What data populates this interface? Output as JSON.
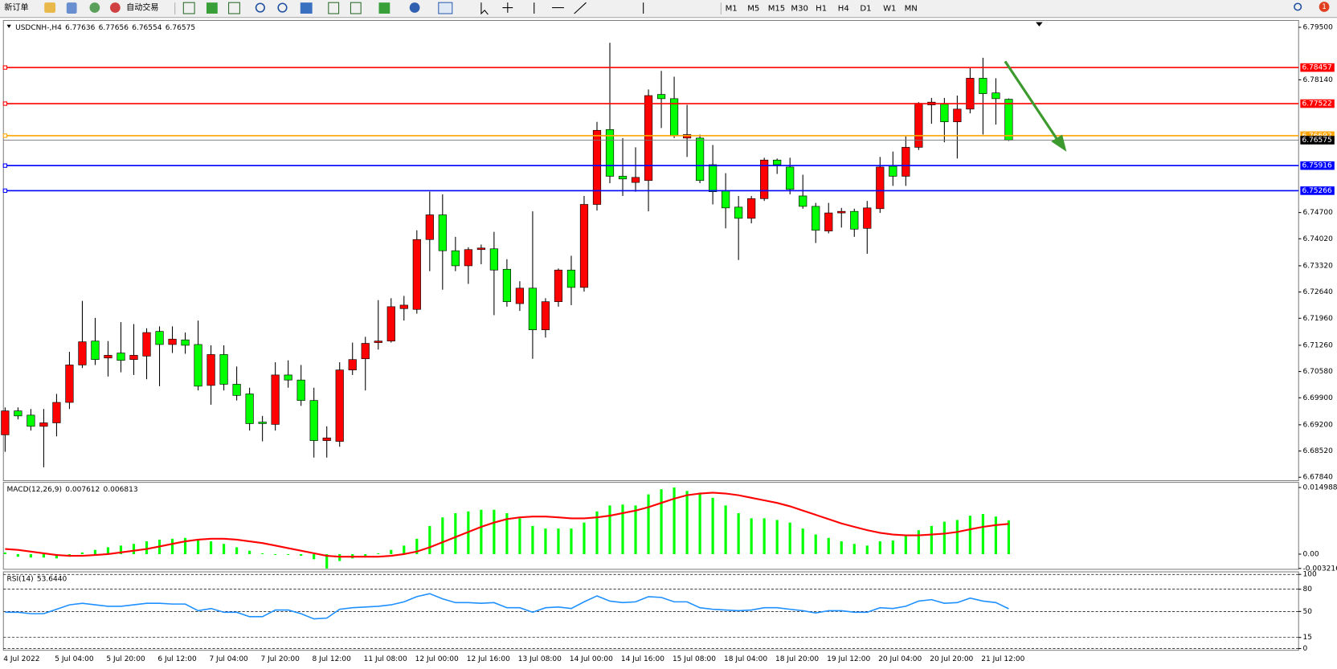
{
  "toolbar": {
    "new_order": "新订单",
    "auto_trading": "自动交易",
    "timeframes": [
      "M1",
      "M5",
      "M15",
      "M30",
      "H1",
      "H4",
      "D1",
      "W1",
      "MN"
    ],
    "badge": 1
  },
  "chart_data": [
    {
      "type": "candlestick",
      "symbol": "USDCNH-,H4",
      "up_color": "#ff0000",
      "down_color": "#00ff00",
      "categories": [
        "4 Jul 2022",
        null,
        null,
        null,
        "5 Jul 04:00",
        null,
        null,
        null,
        "5 Jul 20:00",
        null,
        null,
        null,
        "6 Jul 12:00",
        null,
        null,
        null,
        "7 Jul 04:00",
        null,
        null,
        null,
        "7 Jul 20:00",
        null,
        null,
        null,
        "8 Jul 12:00",
        null,
        null,
        null,
        "11 Jul 08:00",
        null,
        null,
        null,
        "12 Jul 00:00",
        null,
        null,
        null,
        "12 Jul 16:00",
        null,
        null,
        null,
        "13 Jul 08:00",
        null,
        null,
        null,
        "14 Jul 00:00",
        null,
        null,
        null,
        "14 Jul 16:00",
        null,
        null,
        null,
        "15 Jul 08:00",
        null,
        null,
        null,
        "18 Jul 04:00",
        null,
        null,
        null,
        "18 Jul 20:00",
        null,
        null,
        null,
        "19 Jul 12:00",
        null,
        null,
        null,
        "20 Jul 04:00",
        null,
        null,
        null,
        "20 Jul 20:00",
        null,
        null,
        null,
        "21 Jul 12:00",
        null,
        null
      ],
      "open": [
        6.6894,
        6.6956,
        6.6945,
        6.6916,
        6.6925,
        6.6978,
        6.7075,
        6.7137,
        6.7093,
        6.7106,
        6.7089,
        6.7098,
        6.7162,
        6.7128,
        6.714,
        6.7128,
        6.7022,
        6.7102,
        6.7025,
        6.7,
        6.6927,
        6.6921,
        6.7049,
        6.7036,
        6.6983,
        6.6879,
        6.6877,
        6.7062,
        6.7091,
        6.7133,
        6.7137,
        6.7221,
        6.7219,
        6.74,
        6.7464,
        6.7371,
        6.7332,
        6.7374,
        6.7376,
        6.7323,
        6.7234,
        6.7274,
        6.7166,
        6.7239,
        6.7321,
        6.7276,
        6.7491,
        6.7685,
        6.7564,
        6.7548,
        6.7553,
        6.7776,
        6.7765,
        6.7663,
        6.7663,
        6.7594,
        6.7526,
        6.7484,
        6.7455,
        6.7506,
        6.7606,
        6.7588,
        6.7513,
        6.7486,
        6.7422,
        6.7469,
        6.7473,
        6.7429,
        6.748,
        6.759,
        6.7564,
        6.7639,
        6.7749,
        6.7751,
        6.7705,
        6.7738,
        6.7818,
        6.778,
        6.77636
      ],
      "high": [
        6.6965,
        6.6965,
        6.6961,
        6.6961,
        6.7,
        6.7109,
        6.7241,
        6.7197,
        6.7137,
        6.7186,
        6.7181,
        6.717,
        6.7175,
        6.7175,
        6.7159,
        6.719,
        6.7126,
        6.7126,
        6.7071,
        6.7016,
        6.6943,
        6.7082,
        6.7087,
        6.7075,
        6.7016,
        6.6916,
        6.7082,
        6.7133,
        6.7148,
        6.7243,
        6.7248,
        6.7254,
        6.7424,
        6.7524,
        6.7517,
        6.7407,
        6.738,
        6.7387,
        6.742,
        6.7349,
        6.7292,
        6.7473,
        6.7248,
        6.7325,
        6.7358,
        6.7513,
        6.7705,
        6.791,
        6.7663,
        6.7639,
        6.7789,
        6.7837,
        6.7822,
        6.7749,
        6.7672,
        6.7645,
        6.7572,
        6.7513,
        6.7513,
        6.7612,
        6.761,
        6.7612,
        6.7568,
        6.7495,
        6.7495,
        6.7482,
        6.748,
        6.75,
        6.7614,
        6.7628,
        6.7667,
        6.7756,
        6.7767,
        6.7767,
        6.7773,
        6.7844,
        6.7871,
        6.7818,
        6.77656
      ],
      "low": [
        6.685,
        6.6934,
        6.6905,
        6.681,
        6.689,
        6.6961,
        6.7067,
        6.7075,
        6.7045,
        6.7056,
        6.7049,
        6.7038,
        6.702,
        6.7106,
        6.7104,
        6.7009,
        6.6972,
        6.7009,
        6.6983,
        6.6905,
        6.6877,
        6.6905,
        6.7016,
        6.6969,
        6.6835,
        6.6835,
        6.6863,
        6.7049,
        6.7009,
        6.7115,
        6.7133,
        6.719,
        6.7208,
        6.7318,
        6.727,
        6.7318,
        6.7285,
        6.7336,
        6.7204,
        6.7226,
        6.7215,
        6.7091,
        6.7146,
        6.7226,
        6.723,
        6.7265,
        6.7475,
        6.7546,
        6.7513,
        6.7524,
        6.7473,
        6.7689,
        6.7663,
        6.7614,
        6.7546,
        6.7491,
        6.7429,
        6.7347,
        6.7442,
        6.75,
        6.757,
        6.7517,
        6.748,
        6.7391,
        6.7416,
        6.7431,
        6.7407,
        6.7363,
        6.7469,
        6.7539,
        6.7539,
        6.7632,
        6.77,
        6.7652,
        6.761,
        6.7727,
        6.7672,
        6.7698,
        6.76554
      ],
      "close": [
        6.6956,
        6.6943,
        6.6916,
        6.6925,
        6.6978,
        6.7075,
        6.7135,
        6.7089,
        6.71,
        6.7087,
        6.71,
        6.7159,
        6.7128,
        6.7142,
        6.7126,
        6.702,
        6.7102,
        6.7025,
        6.6996,
        6.6923,
        6.6923,
        6.7049,
        6.7036,
        6.6983,
        6.6879,
        6.6886,
        6.7062,
        6.7089,
        6.7131,
        6.7137,
        6.7226,
        6.723,
        6.74,
        6.7464,
        6.7371,
        6.7332,
        6.7374,
        6.7378,
        6.7321,
        6.7239,
        6.7274,
        6.7166,
        6.7239,
        6.7321,
        6.7276,
        6.7491,
        6.7683,
        6.7564,
        6.7557,
        6.7561,
        6.7773,
        6.7765,
        6.767,
        6.7672,
        6.7553,
        6.7524,
        6.7482,
        6.7455,
        6.7506,
        6.7606,
        6.7594,
        6.753,
        6.7486,
        6.7424,
        6.7469,
        6.7473,
        6.7427,
        6.7482,
        6.7588,
        6.7564,
        6.7639,
        6.7753,
        6.7756,
        6.7705,
        6.7738,
        6.7818,
        6.7778,
        6.7765,
        6.76575
      ],
      "ylim": [
        6.67774,
        6.79655
      ],
      "yticks": [
        {
          "value": 6.795,
          "label": "6.79500"
        },
        {
          "value": 6.7814,
          "label": "6.78140"
        },
        {
          "value": 6.747,
          "label": "6.74700"
        },
        {
          "value": 6.7402,
          "label": "6.74020"
        },
        {
          "value": 6.7332,
          "label": "6.73320"
        },
        {
          "value": 6.7264,
          "label": "6.72640"
        },
        {
          "value": 6.7196,
          "label": "6.71960"
        },
        {
          "value": 6.7126,
          "label": "6.71260"
        },
        {
          "value": 6.7058,
          "label": "6.70580"
        },
        {
          "value": 6.699,
          "label": "6.69900"
        },
        {
          "value": 6.692,
          "label": "6.69200"
        },
        {
          "value": 6.6852,
          "label": "6.68520"
        },
        {
          "value": 6.6784,
          "label": "6.67840"
        }
      ],
      "levels": [
        {
          "value": 6.78457,
          "color": "#ff0000"
        },
        {
          "value": 6.77522,
          "color": "#ff0000"
        },
        {
          "value": 6.76692,
          "color": "#ffa500"
        },
        {
          "value": 6.75916,
          "color": "#0000ff"
        },
        {
          "value": 6.75266,
          "color": "#0000ff"
        }
      ]
    },
    {
      "type": "macd",
      "title": "MACD(12,26,9)",
      "series": [
        {
          "color": "#00ff00",
          "values": [
            0.00038,
            -0.00058,
            -0.00077,
            -0.00077,
            -0.00096,
            -0.00058,
            0.00038,
            0.00096,
            0.00154,
            0.00192,
            0.0023,
            0.00288,
            0.00326,
            0.00346,
            0.00365,
            0.00326,
            0.00288,
            0.0023,
            0.00154,
            0.00077,
            0.00019,
            -0.00019,
            -0.00019,
            -0.00038,
            -0.00115,
            -0.003216,
            -0.00154,
            -0.00096,
            -0.00038,
            0.00019,
            0.00096,
            0.00192,
            0.00346,
            0.00634,
            0.00826,
            0.00922,
            0.0096,
            0.00998,
            0.00998,
            0.00922,
            0.00806,
            0.00634,
            0.00576,
            0.00576,
            0.00576,
            0.0071,
            0.0096,
            0.01094,
            0.01114,
            0.01094,
            0.01344,
            0.01459,
            0.014988,
            0.01421,
            0.01382,
            0.01267,
            0.01094,
            0.00922,
            0.00806,
            0.00806,
            0.00768,
            0.0071,
            0.00576,
            0.00442,
            0.00365,
            0.00288,
            0.0023,
            0.00192,
            0.00288,
            0.00307,
            0.00422,
            0.00538,
            0.00634,
            0.0073,
            0.00768,
            0.00864,
            0.00902,
            0.00845,
            0.007612
          ]
        },
        {
          "color": "#ff0000",
          "values": [
            0.00115,
            0.00096,
            0.00058,
            0.00019,
            -0.00019,
            -0.00038,
            -0.00038,
            -0.00019,
            0,
            0.00038,
            0.00077,
            0.00115,
            0.00173,
            0.0023,
            0.00288,
            0.00326,
            0.00346,
            0.00346,
            0.00326,
            0.00288,
            0.0025,
            0.00192,
            0.00134,
            0.00077,
            0.00019,
            -0.00038,
            -0.00058,
            -0.00058,
            -0.00058,
            -0.00058,
            -0.00038,
            0,
            0.00058,
            0.00154,
            0.00269,
            0.00384,
            0.00499,
            0.00614,
            0.0071,
            0.00787,
            0.00826,
            0.00845,
            0.00845,
            0.00826,
            0.00806,
            0.00806,
            0.00826,
            0.00864,
            0.00922,
            0.00979,
            0.01056,
            0.01152,
            0.01248,
            0.01325,
            0.01363,
            0.01382,
            0.01363,
            0.01325,
            0.01267,
            0.0121,
            0.01152,
            0.01075,
            0.00979,
            0.00883,
            0.00787,
            0.00691,
            0.00614,
            0.00538,
            0.0048,
            0.00442,
            0.00422,
            0.00422,
            0.00442,
            0.00461,
            0.00499,
            0.00557,
            0.00614,
            0.00653,
            0.006813
          ]
        }
      ],
      "ylim": [
        -0.003216,
        0.014988
      ],
      "yticks": [
        0.014988,
        {
          "value": 0,
          "label": "0.00"
        },
        -0.003216
      ]
    },
    {
      "type": "line",
      "title": "RSI(14)",
      "value_label": "53.6440",
      "color": "#1e90ff",
      "values": [
        49,
        49,
        47,
        47,
        53,
        59,
        61,
        59,
        57,
        57,
        59,
        61,
        61,
        60,
        60,
        51,
        54,
        49,
        49,
        43,
        43,
        52,
        52,
        47,
        40,
        41,
        53,
        55,
        56,
        57,
        59,
        63,
        70,
        74,
        67,
        62,
        62,
        61,
        62,
        55,
        55,
        49,
        55,
        56,
        54,
        63,
        71,
        64,
        62,
        63,
        70,
        69,
        63,
        63,
        55,
        53,
        52,
        51,
        52,
        55,
        55,
        53,
        51,
        48,
        51,
        51,
        49,
        49,
        55,
        54,
        57,
        64,
        66,
        61,
        62,
        68,
        64,
        62,
        53.644
      ],
      "ylim": [
        0,
        100
      ],
      "yticks": [
        100,
        80,
        50,
        15,
        0
      ],
      "grid": true
    }
  ]
}
